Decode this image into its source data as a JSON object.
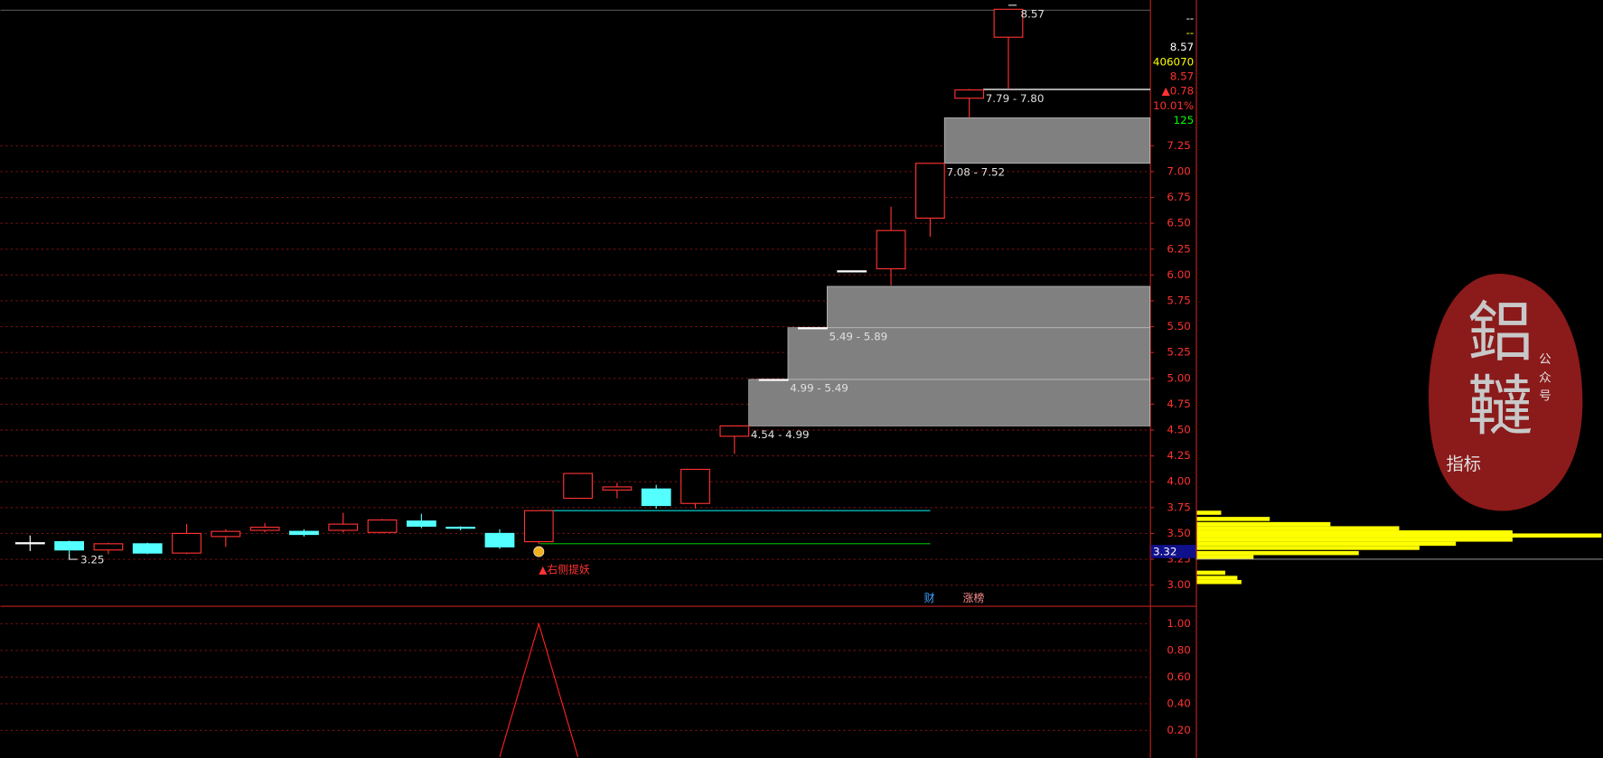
{
  "chart_data": {
    "type": "candlestick",
    "open": [
      3.41,
      3.42,
      3.34,
      3.4,
      3.31,
      3.47,
      3.53,
      3.52,
      3.53,
      3.51,
      3.62,
      3.56,
      3.5,
      3.42,
      3.84,
      3.92,
      3.93,
      3.79,
      4.44,
      4.99,
      5.49,
      6.04,
      6.06,
      6.55,
      7.71,
      8.3
    ],
    "high": [
      3.48,
      3.43,
      3.41,
      3.41,
      3.59,
      3.54,
      3.6,
      3.54,
      3.7,
      3.64,
      3.69,
      3.57,
      3.54,
      3.72,
      4.08,
      3.99,
      3.97,
      4.12,
      4.54,
      4.99,
      5.49,
      6.04,
      6.66,
      7.08,
      7.8,
      8.57
    ],
    "low": [
      3.33,
      3.25,
      3.3,
      3.3,
      3.3,
      3.37,
      3.51,
      3.47,
      3.51,
      3.5,
      3.55,
      3.53,
      3.35,
      3.4,
      3.84,
      3.84,
      3.74,
      3.74,
      4.27,
      4.99,
      5.49,
      6.04,
      5.9,
      6.37,
      7.52,
      7.8
    ],
    "close": [
      3.41,
      3.34,
      3.4,
      3.31,
      3.5,
      3.52,
      3.56,
      3.49,
      3.59,
      3.63,
      3.57,
      3.55,
      3.37,
      3.72,
      4.08,
      3.95,
      3.77,
      4.12,
      4.54,
      4.99,
      5.49,
      6.04,
      6.43,
      7.08,
      7.79,
      8.57
    ],
    "up_color": "#ff3232",
    "down_color": "#54ffff",
    "flat_color": "#ffffff",
    "ylim": [
      2.8,
      8.66
    ],
    "yticks": [
      {
        "value": 3,
        "label": "3.00"
      },
      3.25,
      {
        "value": 3.5,
        "label": "3.50"
      },
      3.75,
      {
        "value": 4,
        "label": "4.00"
      },
      4.25,
      {
        "value": 4.5,
        "label": "4.50"
      },
      4.75,
      {
        "value": 5,
        "label": "5.00"
      },
      5.25,
      {
        "value": 5.5,
        "label": "5.50"
      },
      5.75,
      {
        "value": 6,
        "label": "6.00"
      },
      6.25,
      {
        "value": 6.5,
        "label": "6.50"
      },
      6.75,
      {
        "value": 7,
        "label": "7.00"
      },
      7.25
    ],
    "grid": true,
    "gaps": [
      {
        "low": 4.54,
        "high": 4.99,
        "label": "4.54 - 4.99"
      },
      {
        "low": 4.99,
        "high": 5.49,
        "label": "4.99 - 5.49"
      },
      {
        "low": 5.49,
        "high": 5.89,
        "label": "5.49 - 5.89"
      },
      {
        "low": 7.08,
        "high": 7.52,
        "label": "7.08 - 7.52"
      },
      {
        "low": 7.79,
        "high": 7.8,
        "label": "7.79 - 7.80"
      }
    ],
    "levels": [
      {
        "value": 3.72,
        "color": "#00c8c8"
      },
      {
        "value": 3.4,
        "color": "#00c000"
      }
    ],
    "last_price": 3.32,
    "signal": "▲右侧提妖",
    "tags": [
      "财",
      "涨榜"
    ],
    "profile": {
      "prices": [
        3.03,
        3.07,
        3.12,
        3.27,
        3.31,
        3.36,
        3.4,
        3.44,
        3.48,
        3.51,
        3.55,
        3.59,
        3.64,
        3.7
      ],
      "values": [
        11,
        10,
        7,
        14,
        40,
        55,
        64,
        78,
        100,
        78,
        50,
        33,
        18,
        6
      ],
      "color": "#ffff00"
    },
    "indicator": {
      "values": [
        null,
        null,
        null,
        null,
        null,
        null,
        null,
        null,
        null,
        null,
        null,
        null,
        0,
        1,
        0,
        null,
        null,
        null,
        null,
        null,
        null,
        null,
        null,
        null,
        null,
        null
      ],
      "color": "#ff2020",
      "ylim": [
        0,
        1.12
      ],
      "yticks": [
        {
          "value": 0.2,
          "label": "0.20"
        },
        {
          "value": 0.4,
          "label": "0.40"
        },
        {
          "value": 0.6,
          "label": "0.60"
        },
        {
          "value": 0.8,
          "label": "0.80"
        },
        {
          "value": 1,
          "label": "1.00"
        }
      ]
    }
  },
  "quote": [
    {
      "text": "--",
      "color": "#ffffff"
    },
    {
      "text": "--",
      "color": "#ffff00"
    },
    {
      "text": "8.57",
      "color": "#ffffff"
    },
    {
      "text": "406070",
      "color": "#ffff00"
    },
    {
      "text": "8.57",
      "color": "#ff3232"
    },
    {
      "text": "▲0.78",
      "color": "#ff3232"
    },
    {
      "text": "10.01%",
      "color": "#ff3232"
    },
    {
      "text": "125",
      "color": "#00ff00"
    }
  ],
  "logo": {
    "chars": [
      "鋁",
      "韃"
    ],
    "side": "公众号",
    "label": "指标"
  }
}
